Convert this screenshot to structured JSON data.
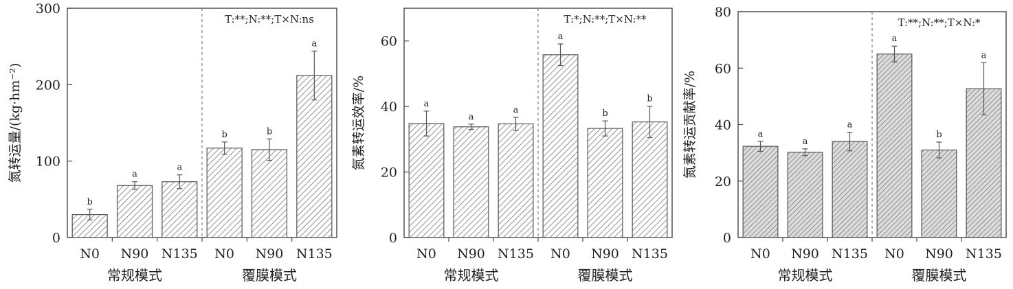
{
  "chart_data": [
    {
      "type": "bar",
      "ylabel": "氮转运量/(kg·hm⁻²)",
      "ylim": [
        0,
        300
      ],
      "yticks": [
        0,
        100,
        200,
        300
      ],
      "categories": [
        "N0",
        "N90",
        "N135",
        "N0",
        "N90",
        "N135"
      ],
      "groups": [
        "常规模式",
        "覆膜模式"
      ],
      "annotation": "T:**;N:**;T×N:ns",
      "values": [
        30,
        68,
        73,
        117,
        115,
        212
      ],
      "errors": [
        7,
        5,
        9,
        8,
        14,
        32
      ],
      "letters": [
        "b",
        "a",
        "a",
        "b",
        "b",
        "a"
      ]
    },
    {
      "type": "bar",
      "ylabel": "氮素转运效率/%",
      "ylim": [
        0,
        70
      ],
      "yticks": [
        0,
        20,
        40,
        60
      ],
      "categories": [
        "N0",
        "N90",
        "N135",
        "N0",
        "N90",
        "N135"
      ],
      "groups": [
        "常规模式",
        "覆膜模式"
      ],
      "annotation": "T:*;N:**;T×N:**",
      "values": [
        34.8,
        33.8,
        34.7,
        55.8,
        33.3,
        35.3
      ],
      "errors": [
        3.8,
        0.8,
        2.0,
        3.3,
        2.3,
        4.8
      ],
      "letters": [
        "a",
        "a",
        "a",
        "a",
        "b",
        "b"
      ]
    },
    {
      "type": "bar",
      "ylabel": "氮素转运贡献率/%",
      "ylim": [
        0,
        80
      ],
      "yticks": [
        0,
        20,
        40,
        60,
        80
      ],
      "categories": [
        "N0",
        "N90",
        "N135",
        "N0",
        "N90",
        "N135"
      ],
      "groups": [
        "常规模式",
        "覆膜模式"
      ],
      "annotation": "T:**;N:**;T×N:*",
      "values": [
        32.3,
        30.2,
        34.0,
        65.0,
        31.0,
        52.7
      ],
      "errors": [
        1.8,
        1.2,
        3.3,
        2.8,
        2.8,
        9.2
      ],
      "letters": [
        "a",
        "a",
        "a",
        "a",
        "b",
        "a"
      ]
    }
  ]
}
